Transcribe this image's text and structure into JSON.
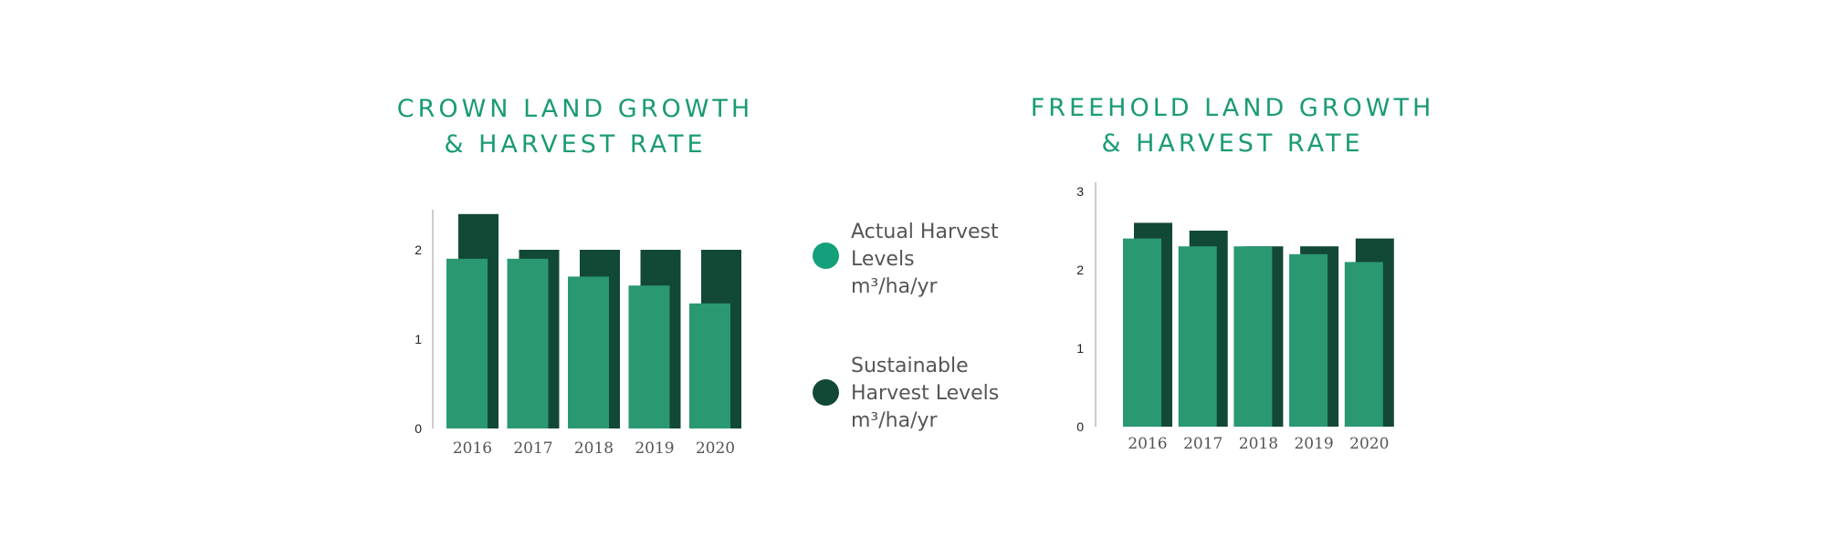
{
  "colors": {
    "actual": "#2a9870",
    "sustainable": "#124836",
    "title": "#1a9b74",
    "legend_actual": "#14a07a"
  },
  "legend": {
    "actual": {
      "label": "Actual Harvest Levels",
      "unit": "m³/ha/yr"
    },
    "sustainable": {
      "label": "Sustainable Harvest Levels",
      "unit": "m³/ha/yr"
    }
  },
  "chart_data": [
    {
      "type": "bar",
      "title": "CROWN LAND GROWTH & HARVEST RATE",
      "categories": [
        "2016",
        "2017",
        "2018",
        "2019",
        "2020"
      ],
      "series": [
        {
          "name": "Actual Harvest Levels m³/ha/yr",
          "values": [
            1.9,
            1.9,
            1.7,
            1.6,
            1.4
          ]
        },
        {
          "name": "Sustainable Harvest Levels m³/ha/yr",
          "values": [
            2.4,
            2.0,
            2.0,
            2.0,
            2.0
          ]
        }
      ],
      "ylim": [
        0,
        2.45
      ],
      "yticks": [
        "0",
        "1",
        "2"
      ],
      "grid": false
    },
    {
      "type": "bar",
      "title": "FREEHOLD LAND GROWTH & HARVEST RATE",
      "categories": [
        "2016",
        "2017",
        "2018",
        "2019",
        "2020"
      ],
      "series": [
        {
          "name": "Actual Harvest Levels m³/ha/yr",
          "values": [
            2.4,
            2.3,
            2.3,
            2.2,
            2.1
          ]
        },
        {
          "name": "Sustainable Harvest Levels m³/ha/yr",
          "values": [
            2.6,
            2.5,
            2.3,
            2.3,
            2.4
          ]
        }
      ],
      "ylim": [
        0,
        3
      ],
      "yticks": [
        "0",
        "1",
        "2",
        "3"
      ],
      "grid": false
    }
  ]
}
